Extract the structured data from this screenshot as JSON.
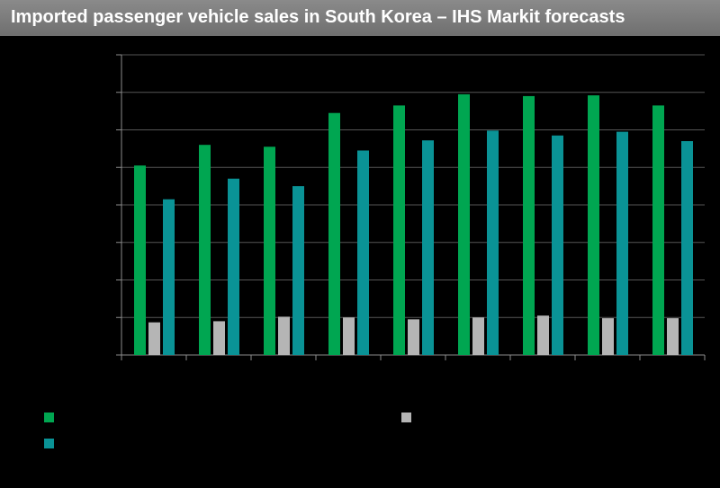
{
  "title": "Imported passenger vehicle sales in South Korea – IHS Markit forecasts",
  "colors": {
    "background": "#000000",
    "title_bar": "#7b7b7b",
    "axis": "#8c8c8c",
    "grid": "#555555"
  },
  "chart_data": {
    "type": "bar",
    "title": "Imported passenger vehicle sales in South Korea – IHS Markit forecasts",
    "xlabel": "",
    "ylabel": "",
    "ylim": [
      0,
      8
    ],
    "grid": true,
    "legend_position": "bottom",
    "categories": [
      "",
      "",
      "",
      "",
      "",
      "",
      "",
      "",
      ""
    ],
    "series": [
      {
        "color": "#00a651",
        "values": [
          5.05,
          5.6,
          5.55,
          6.45,
          6.65,
          6.95,
          6.9,
          6.92,
          6.65
        ]
      },
      {
        "color": "#0a9396",
        "values": [
          4.15,
          4.7,
          4.5,
          5.45,
          5.72,
          5.98,
          5.85,
          5.95,
          5.7
        ]
      },
      {
        "color": "#b5b5b5",
        "values": [
          0.87,
          0.9,
          1.02,
          1.0,
          0.95,
          1.0,
          1.05,
          0.98,
          0.98
        ]
      }
    ]
  }
}
